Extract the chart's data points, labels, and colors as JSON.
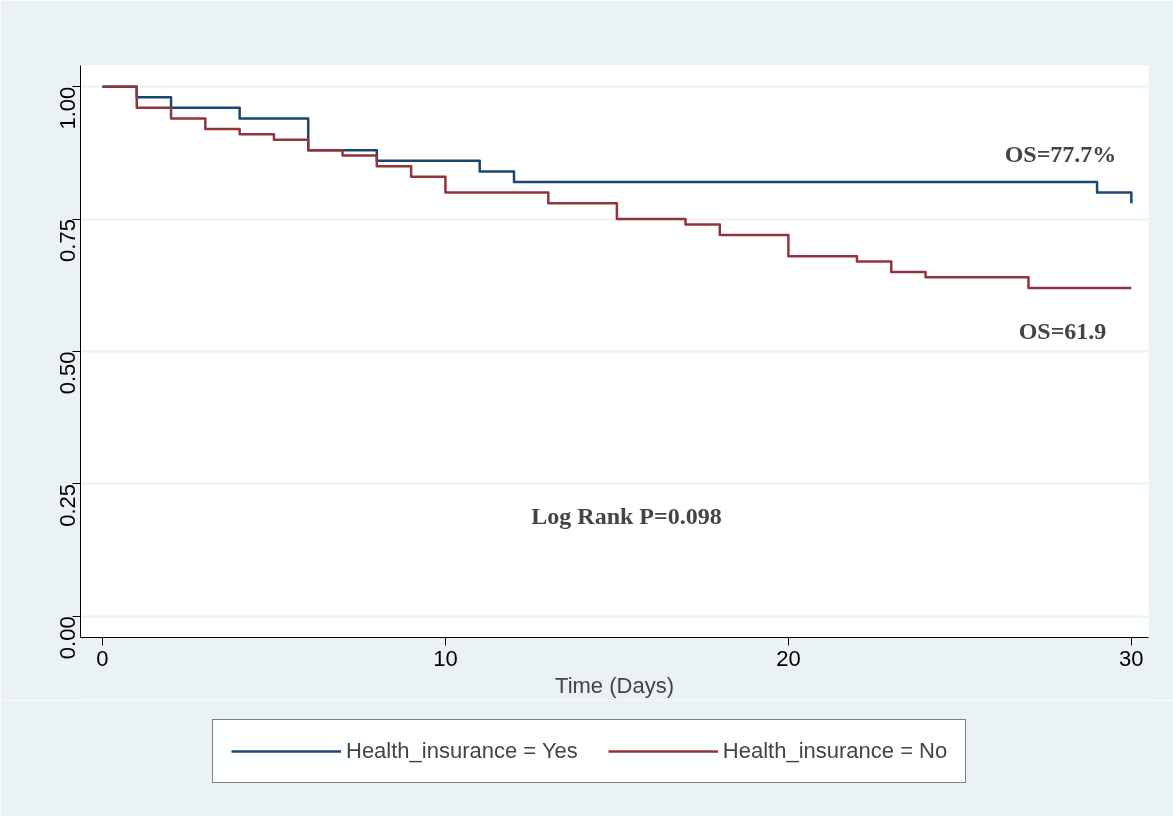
{
  "chart_data": {
    "type": "step",
    "xlabel": "Time (Days)",
    "xlim": [
      -0.64,
      30.5
    ],
    "ylim": [
      -0.04,
      1.04
    ],
    "xticks": [
      0,
      10,
      20,
      30
    ],
    "yticks": [
      {
        "value": 0,
        "label": "0.00"
      },
      {
        "value": 0.25,
        "label": "0.25"
      },
      {
        "value": 0.5,
        "label": "0.50"
      },
      {
        "value": 0.75,
        "label": "0.75"
      },
      {
        "value": 1,
        "label": "1.00"
      }
    ],
    "grid": "y",
    "legend": "bottom",
    "marker": "none",
    "line_style": "solid",
    "series": [
      {
        "name": "Health_insurance = Yes",
        "color": "#1a476f",
        "x": [
          0,
          1,
          2,
          4,
          6,
          8,
          11,
          12,
          29,
          30
        ],
        "values": [
          1,
          0.98,
          0.96,
          0.94,
          0.88,
          0.86,
          0.84,
          0.82,
          0.8,
          0.78
        ]
      },
      {
        "name": "Health_insurance = No",
        "color": "#90353b",
        "x": [
          0,
          1,
          2,
          3,
          4,
          5,
          6,
          7,
          8,
          9,
          10,
          13,
          15,
          17,
          18,
          20,
          22,
          23,
          24,
          27,
          30
        ],
        "values": [
          1,
          0.96,
          0.94,
          0.92,
          0.91,
          0.9,
          0.88,
          0.87,
          0.85,
          0.83,
          0.8,
          0.78,
          0.75,
          0.74,
          0.72,
          0.68,
          0.67,
          0.65,
          0.64,
          0.62,
          0.62
        ]
      }
    ],
    "annotations": [
      "OS=77.7%",
      "OS=61.9",
      "Log Rank P=0.098"
    ]
  }
}
